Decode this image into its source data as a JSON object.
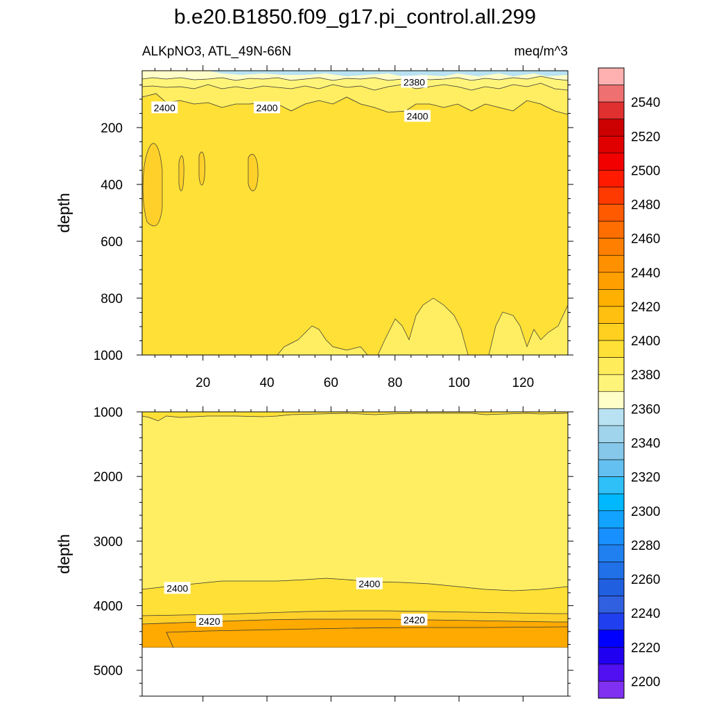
{
  "title": "b.e20.B1850.f09_g17.pi_control.all.299",
  "subtitle_left": "ALKpNO3, ATL_49N-66N",
  "subtitle_right": "meq/m^3",
  "colors": {
    "c2370": "#fffdc8",
    "c2380": "#fff47a",
    "c2390": "#ffee62",
    "c2400": "#ffe036",
    "c2410": "#ffd02a",
    "c2420": "#ffaa00",
    "c2360": "#b8e2f2"
  },
  "chart_data": [
    {
      "type": "contour",
      "panel": "top",
      "x_ticks": [
        20,
        40,
        60,
        80,
        100,
        120
      ],
      "y_ticks": [
        200,
        400,
        600,
        800,
        1000
      ],
      "xlim": [
        1,
        134
      ],
      "ylim": [
        0,
        1000
      ],
      "ylabel": "depth",
      "contour_labels": [
        {
          "text": "2400",
          "x": 8,
          "y": 130
        },
        {
          "text": "2400",
          "x": 40,
          "y": 130
        },
        {
          "text": "2400",
          "x": 87,
          "y": 160
        },
        {
          "text": "2380",
          "x": 86,
          "y": 40
        }
      ]
    },
    {
      "type": "contour",
      "panel": "bottom",
      "y_ticks": [
        1000,
        2000,
        3000,
        4000,
        5000
      ],
      "ylim": [
        1000,
        5400
      ],
      "ylabel": "depth",
      "contour_labels": [
        {
          "text": "2400",
          "x": 12,
          "y": 3730
        },
        {
          "text": "2400",
          "x": 72,
          "y": 3660
        },
        {
          "text": "2420",
          "x": 22,
          "y": 4240
        },
        {
          "text": "2420",
          "x": 86,
          "y": 4220
        }
      ]
    }
  ],
  "colorbar": {
    "labels": [
      "2540",
      "2520",
      "2500",
      "2480",
      "2460",
      "2440",
      "2420",
      "2400",
      "2380",
      "2360",
      "2340",
      "2320",
      "2300",
      "2280",
      "2260",
      "2240",
      "2220",
      "2200"
    ],
    "swatches": [
      "#ffb0b0",
      "#ee7070",
      "#e03030",
      "#cc0000",
      "#e00000",
      "#f20000",
      "#ff1a00",
      "#ff3a00",
      "#ff5a00",
      "#ff6e00",
      "#ff8000",
      "#ff9000",
      "#ffa000",
      "#ffb000",
      "#ffc010",
      "#ffd020",
      "#ffe036",
      "#ffec5a",
      "#fff47a",
      "#fffdc8",
      "#b8e2f2",
      "#a0d4ec",
      "#86c8ea",
      "#64c0f0",
      "#30c0f8",
      "#00b8ff",
      "#12a2ff",
      "#1890ff",
      "#2080f0",
      "#2070e8",
      "#2060e0",
      "#3060e0",
      "#2040f0",
      "#0000ff",
      "#2000f0",
      "#5010f0",
      "#8030f0"
    ]
  }
}
